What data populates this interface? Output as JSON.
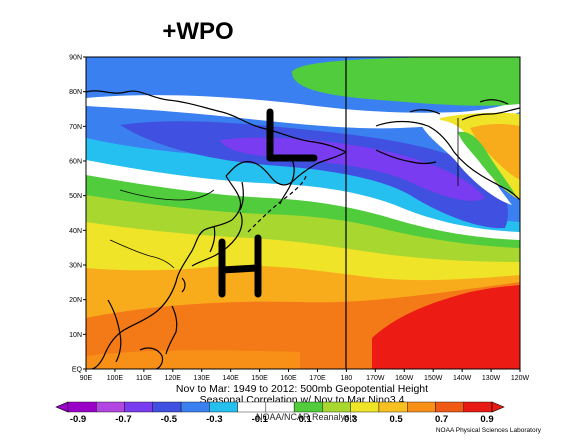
{
  "headline": "+WPO",
  "map": {
    "lat_labels": [
      "90N",
      "80N",
      "70N",
      "60N",
      "50N",
      "40N",
      "30N",
      "20N",
      "10N",
      "EQ"
    ],
    "lon_labels": [
      "90E",
      "100E",
      "110E",
      "120E",
      "130E",
      "140E",
      "150E",
      "160E",
      "170E",
      "180",
      "170W",
      "160W",
      "150W",
      "140W",
      "130W",
      "120W"
    ],
    "anomaly_letters": {
      "low": "L",
      "high": "H"
    }
  },
  "caption": {
    "line1": "Nov to Mar: 1949 to 2012: 500mb Geopotential Height",
    "line2": "Seasonal Correlation w/ Nov to Mar Nino3.4",
    "overlap_text": "NOAA/NCAR Reanalysis"
  },
  "colorbar": {
    "tick_labels": [
      "-0.9",
      "-0.7",
      "-0.5",
      "-0.3",
      "-0.1",
      "0.1",
      "0.3",
      "0.5",
      "0.7",
      "0.9"
    ],
    "colors": [
      "#9a00c8",
      "#b246e0",
      "#7a3cf0",
      "#4050e0",
      "#3a80f0",
      "#26c0f0",
      "#ffffff",
      "#ffffff",
      "#50cc3c",
      "#a8d830",
      "#f0e428",
      "#f8c020",
      "#f89018",
      "#f05a14",
      "#e81a14"
    ],
    "credit": "NOAA Physical Sciences Laboratory"
  }
}
